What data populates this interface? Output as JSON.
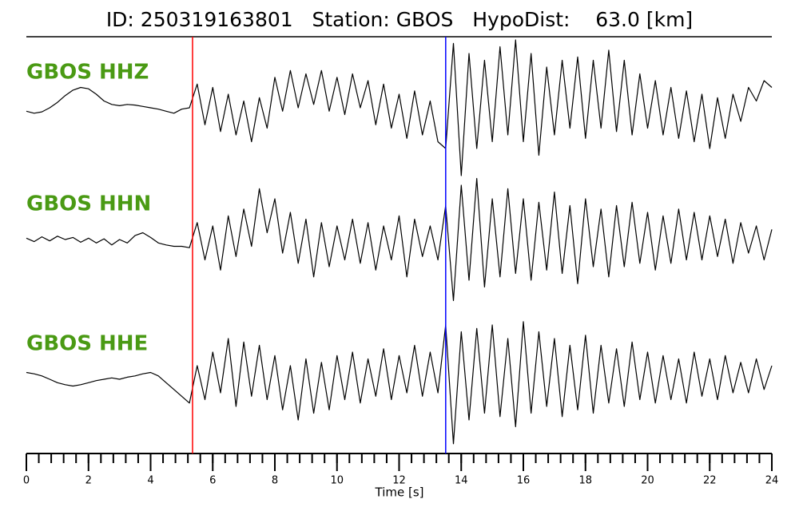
{
  "chart_data": {
    "type": "line",
    "title": "ID: 250319163801   Station: GBOS   HypoDist:    63.0 [km]",
    "xlabel": "Time [s]",
    "xlim": [
      0,
      24
    ],
    "xticks": [
      0,
      2,
      4,
      6,
      8,
      10,
      12,
      14,
      16,
      18,
      20,
      22,
      24
    ],
    "minor_xticks": [
      0,
      0.4,
      0.8,
      1.2,
      1.6,
      2,
      2.4,
      2.8,
      3.2,
      3.6,
      4,
      4.4,
      4.8,
      5.2,
      5.6,
      6,
      6.4,
      6.8,
      7.2,
      7.6,
      8,
      8.4,
      8.8,
      9.2,
      9.6,
      10,
      10.4,
      10.8,
      11.2,
      11.6,
      12,
      12.4,
      12.8,
      13.2,
      13.6,
      14,
      14.4,
      14.8,
      15.2,
      15.6,
      16,
      16.4,
      16.8,
      17.2,
      17.6,
      18,
      18.4,
      18.8,
      19.2,
      19.6,
      20,
      20.4,
      20.8,
      21.2,
      21.6,
      22,
      22.4,
      22.8,
      23.2,
      23.6,
      24
    ],
    "ylim": [
      -1,
      1
    ],
    "label_color": "#4a9a14",
    "picks": [
      {
        "x": 5.35,
        "color": "#ff0000"
      },
      {
        "x": 13.5,
        "color": "#0000ff"
      }
    ],
    "x": [
      0,
      0.25,
      0.5,
      0.75,
      1,
      1.25,
      1.5,
      1.75,
      2,
      2.25,
      2.5,
      2.75,
      3,
      3.25,
      3.5,
      3.75,
      4,
      4.25,
      4.5,
      4.75,
      5,
      5.25,
      5.5,
      5.75,
      6,
      6.25,
      6.5,
      6.75,
      7,
      7.25,
      7.5,
      7.75,
      8,
      8.25,
      8.5,
      8.75,
      9,
      9.25,
      9.5,
      9.75,
      10,
      10.25,
      10.5,
      10.75,
      11,
      11.25,
      11.5,
      11.75,
      12,
      12.25,
      12.5,
      12.75,
      13,
      13.25,
      13.5,
      13.75,
      14,
      14.25,
      14.5,
      14.75,
      15,
      15.25,
      15.5,
      15.75,
      16,
      16.25,
      16.5,
      16.75,
      17,
      17.25,
      17.5,
      17.75,
      18,
      18.25,
      18.5,
      18.75,
      19,
      19.25,
      19.5,
      19.75,
      20,
      20.25,
      20.5,
      20.75,
      21,
      21.25,
      21.5,
      21.75,
      22,
      22.25,
      22.5,
      22.75,
      23,
      23.25,
      23.5,
      23.75,
      24
    ],
    "series": [
      {
        "name": "GBOS HHZ",
        "color": "#000000",
        "values": [
          -0.05,
          -0.08,
          -0.06,
          0,
          0.08,
          0.18,
          0.26,
          0.3,
          0.28,
          0.2,
          0.1,
          0.05,
          0.03,
          0.05,
          0.04,
          0.02,
          0,
          -0.02,
          -0.05,
          -0.08,
          -0.02,
          0,
          0.35,
          -0.25,
          0.3,
          -0.35,
          0.2,
          -0.4,
          0.1,
          -0.5,
          0.15,
          -0.3,
          0.45,
          -0.05,
          0.55,
          0,
          0.5,
          0.05,
          0.55,
          -0.05,
          0.45,
          -0.1,
          0.5,
          0,
          0.4,
          -0.25,
          0.35,
          -0.3,
          0.2,
          -0.45,
          0.25,
          -0.4,
          0.1,
          -0.5,
          -0.6,
          0.95,
          -1,
          0.8,
          -0.6,
          0.7,
          -0.5,
          0.9,
          -0.4,
          1,
          -0.5,
          0.8,
          -0.7,
          0.6,
          -0.4,
          0.7,
          -0.3,
          0.75,
          -0.45,
          0.7,
          -0.3,
          0.85,
          -0.35,
          0.7,
          -0.4,
          0.5,
          -0.3,
          0.4,
          -0.4,
          0.3,
          -0.45,
          0.25,
          -0.5,
          0.2,
          -0.6,
          0.15,
          -0.45,
          0.2,
          -0.2,
          0.3,
          0.1,
          0.4,
          0.3
        ]
      },
      {
        "name": "GBOS HHN",
        "color": "#000000",
        "values": [
          0.02,
          -0.03,
          0.04,
          -0.02,
          0.05,
          0,
          0.03,
          -0.04,
          0.02,
          -0.05,
          0.01,
          -0.08,
          0,
          -0.05,
          0.06,
          0.1,
          0.03,
          -0.05,
          -0.08,
          -0.1,
          -0.1,
          -0.12,
          0.25,
          -0.3,
          0.2,
          -0.45,
          0.35,
          -0.25,
          0.45,
          -0.1,
          0.75,
          0.1,
          0.6,
          -0.2,
          0.4,
          -0.35,
          0.3,
          -0.55,
          0.25,
          -0.4,
          0.2,
          -0.3,
          0.3,
          -0.35,
          0.25,
          -0.45,
          0.2,
          -0.3,
          0.35,
          -0.55,
          0.3,
          -0.25,
          0.2,
          -0.3,
          0.5,
          -0.9,
          0.8,
          -0.6,
          0.9,
          -0.7,
          0.6,
          -0.55,
          0.75,
          -0.5,
          0.6,
          -0.6,
          0.55,
          -0.45,
          0.7,
          -0.5,
          0.5,
          -0.65,
          0.6,
          -0.4,
          0.45,
          -0.55,
          0.5,
          -0.4,
          0.55,
          -0.35,
          0.4,
          -0.45,
          0.35,
          -0.35,
          0.45,
          -0.3,
          0.4,
          -0.3,
          0.35,
          -0.25,
          0.3,
          -0.35,
          0.25,
          -0.2,
          0.2,
          -0.3,
          0.15
        ]
      },
      {
        "name": "GBOS HHE",
        "color": "#000000",
        "values": [
          0.1,
          0.08,
          0.05,
          0,
          -0.05,
          -0.08,
          -0.1,
          -0.08,
          -0.05,
          -0.02,
          0,
          0.02,
          0,
          0.03,
          0.05,
          0.08,
          0.1,
          0.05,
          -0.05,
          -0.15,
          -0.25,
          -0.35,
          0.2,
          -0.3,
          0.4,
          -0.2,
          0.6,
          -0.4,
          0.55,
          -0.25,
          0.5,
          -0.3,
          0.35,
          -0.45,
          0.2,
          -0.6,
          0.3,
          -0.5,
          0.25,
          -0.45,
          0.35,
          -0.3,
          0.4,
          -0.35,
          0.3,
          -0.25,
          0.45,
          -0.3,
          0.35,
          -0.2,
          0.5,
          -0.25,
          0.4,
          -0.2,
          0.8,
          -0.95,
          0.7,
          -0.6,
          0.75,
          -0.5,
          0.8,
          -0.55,
          0.6,
          -0.7,
          0.85,
          -0.5,
          0.7,
          -0.4,
          0.6,
          -0.55,
          0.5,
          -0.45,
          0.65,
          -0.5,
          0.5,
          -0.35,
          0.45,
          -0.4,
          0.55,
          -0.3,
          0.4,
          -0.35,
          0.35,
          -0.3,
          0.3,
          -0.35,
          0.4,
          -0.25,
          0.3,
          -0.3,
          0.35,
          -0.2,
          0.25,
          -0.2,
          0.3,
          -0.15,
          0.2
        ]
      }
    ]
  }
}
